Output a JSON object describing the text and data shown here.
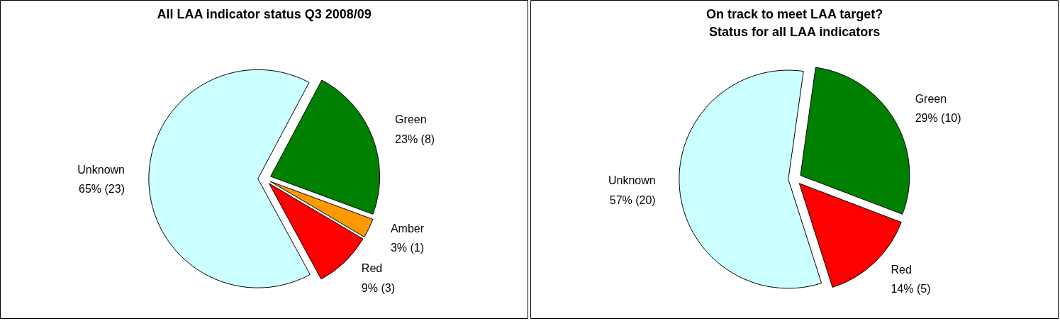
{
  "chart_data": [
    {
      "type": "pie",
      "title": "All LAA indicator status Q3 2008/09",
      "categories": [
        "Green",
        "Amber",
        "Red",
        "Unknown"
      ],
      "values": [
        8,
        1,
        3,
        23
      ],
      "colors": [
        "#008000",
        "#ff9900",
        "#ff0000",
        "#ccffff"
      ],
      "value_labels": [
        "23% (8)",
        "3% (1)",
        "9% (3)",
        "65% (23)"
      ]
    },
    {
      "type": "pie",
      "title": "On track to meet LAA target?\nStatus for all LAA indicators",
      "categories": [
        "Green",
        "Red",
        "Unknown"
      ],
      "values": [
        10,
        5,
        20
      ],
      "colors": [
        "#008000",
        "#ff0000",
        "#ccffff"
      ],
      "value_labels": [
        "29% (10)",
        "14% (5)",
        "57% (20)"
      ]
    }
  ]
}
